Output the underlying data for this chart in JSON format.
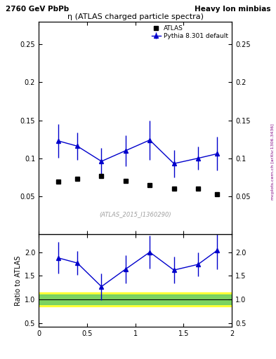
{
  "title_left": "2760 GeV PbPb",
  "title_right": "Heavy Ion minbias",
  "main_title": "η (ATLAS charged particle spectra)",
  "watermark": "(ATLAS_2015_I1360290)",
  "side_label": "mcplots.cern.ch [arXiv:1306.3436]",
  "atlas_x": [
    0.2,
    0.4,
    0.65,
    0.9,
    1.15,
    1.4,
    1.65,
    1.85
  ],
  "atlas_y": [
    0.069,
    0.073,
    0.077,
    0.07,
    0.065,
    0.06,
    0.06,
    0.053
  ],
  "pythia_x": [
    0.2,
    0.4,
    0.65,
    0.9,
    1.15,
    1.4,
    1.65,
    1.85
  ],
  "pythia_y": [
    0.123,
    0.116,
    0.096,
    0.11,
    0.124,
    0.093,
    0.1,
    0.106
  ],
  "pythia_yerr": [
    0.022,
    0.018,
    0.018,
    0.02,
    0.026,
    0.018,
    0.015,
    0.022
  ],
  "ratio_x": [
    0.2,
    0.4,
    0.65,
    0.9,
    1.15,
    1.4,
    1.65,
    1.85
  ],
  "ratio_y": [
    1.88,
    1.77,
    1.27,
    1.64,
    2.0,
    1.62,
    1.74,
    2.04
  ],
  "ratio_yerr": [
    0.33,
    0.25,
    0.28,
    0.3,
    0.35,
    0.28,
    0.25,
    0.4
  ],
  "main_ylim": [
    0.0,
    0.28
  ],
  "main_yticks": [
    0.05,
    0.1,
    0.15,
    0.2,
    0.25
  ],
  "ratio_ylim": [
    0.42,
    2.38
  ],
  "ratio_yticks": [
    0.5,
    1.0,
    1.5,
    2.0
  ],
  "xlim": [
    0.0,
    2.0
  ],
  "xticks": [
    0.0,
    0.5,
    1.0,
    1.5,
    2.0
  ],
  "green_band": [
    0.9,
    1.1
  ],
  "yellow_band": [
    0.85,
    1.15
  ],
  "atlas_color": "black",
  "pythia_color": "#0000cc",
  "bg_color": "#ffffff"
}
